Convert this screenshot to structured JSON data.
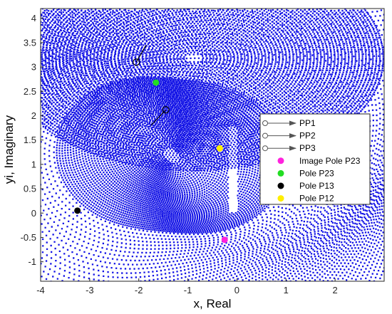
{
  "chart_data": {
    "type": "scatter",
    "xlabel": "x, Real",
    "ylabel": "yi, Imaginary",
    "xlim": [
      -4,
      3
    ],
    "ylim": [
      -1.4,
      4.2
    ],
    "x_ticks": [
      "-4",
      "-3",
      "-2",
      "-1",
      "0",
      "1",
      "2"
    ],
    "y_ticks": [
      "-1",
      "-0.5",
      "0",
      "0.5",
      "1",
      "1.5",
      "2",
      "2.5",
      "3",
      "3.5",
      "4"
    ],
    "x_tick_values": [
      -4,
      -3,
      -2,
      -1,
      0,
      1,
      2
    ],
    "y_tick_values": [
      -1,
      -0.5,
      0,
      0.5,
      1,
      1.5,
      2,
      2.5,
      3,
      3.5,
      4
    ],
    "grid": false,
    "legend_position": "right",
    "field_color": "#1414e6",
    "arrow_color": "#555555",
    "series": [
      {
        "name": "PP1",
        "kind": "arrow"
      },
      {
        "name": "PP2",
        "kind": "arrow"
      },
      {
        "name": "PP3",
        "kind": "arrow"
      },
      {
        "name": "Image Pole P23",
        "kind": "point",
        "color": "#ff22dd",
        "points": [
          [
            -0.25,
            -0.55
          ]
        ]
      },
      {
        "name": "Pole P23",
        "kind": "point",
        "color": "#22dd22",
        "points": [
          [
            -1.65,
            2.68
          ]
        ]
      },
      {
        "name": "Pole P13",
        "kind": "point",
        "color": "#000000",
        "points": [
          [
            -3.25,
            0.05
          ]
        ]
      },
      {
        "name": "Pole P12",
        "kind": "point",
        "color": "#ffee00",
        "points": [
          [
            -0.35,
            1.33
          ]
        ]
      }
    ],
    "path_markers": [
      {
        "start": [
          -2.05,
          3.1
        ],
        "end": [
          -1.85,
          3.45
        ]
      },
      {
        "start": [
          -1.45,
          2.12
        ],
        "end": [
          -1.75,
          1.8
        ]
      }
    ]
  }
}
